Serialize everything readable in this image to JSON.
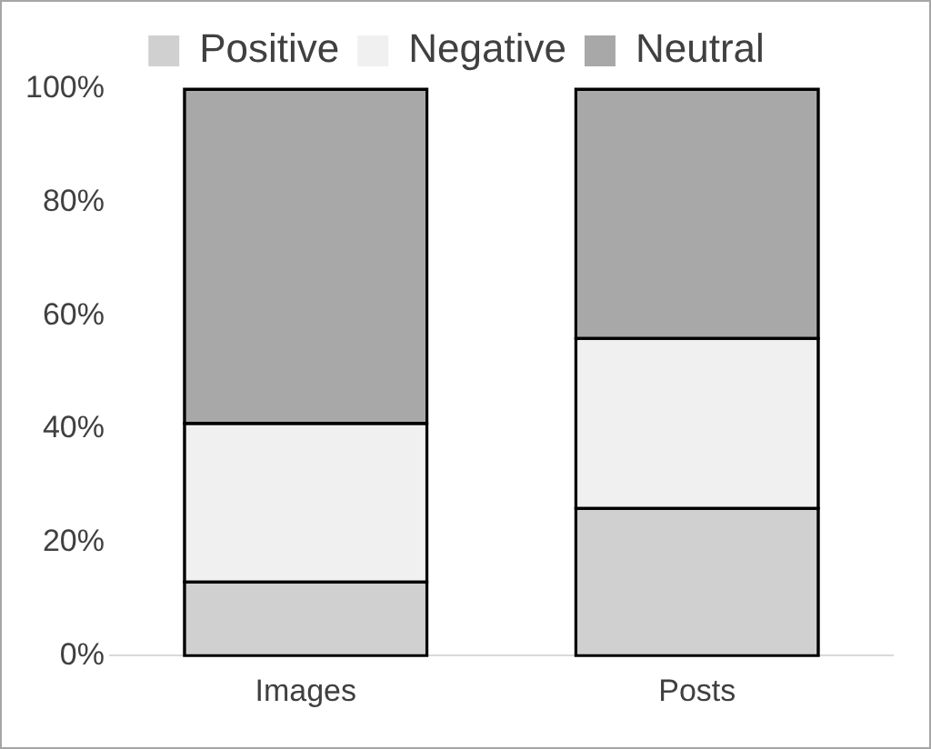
{
  "chart_data": {
    "type": "bar",
    "stacked": true,
    "categories": [
      "Images",
      "Posts"
    ],
    "series": [
      {
        "name": "Positive",
        "color": "#d0d0d0",
        "values": [
          13,
          26
        ]
      },
      {
        "name": "Negative",
        "color": "#f0f0f0",
        "values": [
          28,
          30
        ]
      },
      {
        "name": "Neutral",
        "color": "#a8a8a8",
        "values": [
          59,
          44
        ]
      }
    ],
    "ylim": [
      0,
      100
    ],
    "yticks": [
      {
        "value": 0,
        "label": "0%"
      },
      {
        "value": 20,
        "label": "20%"
      },
      {
        "value": 40,
        "label": "40%"
      },
      {
        "value": 60,
        "label": "60%"
      },
      {
        "value": 80,
        "label": "80%"
      },
      {
        "value": 100,
        "label": "100%"
      }
    ],
    "grid": false,
    "legend": "top"
  }
}
